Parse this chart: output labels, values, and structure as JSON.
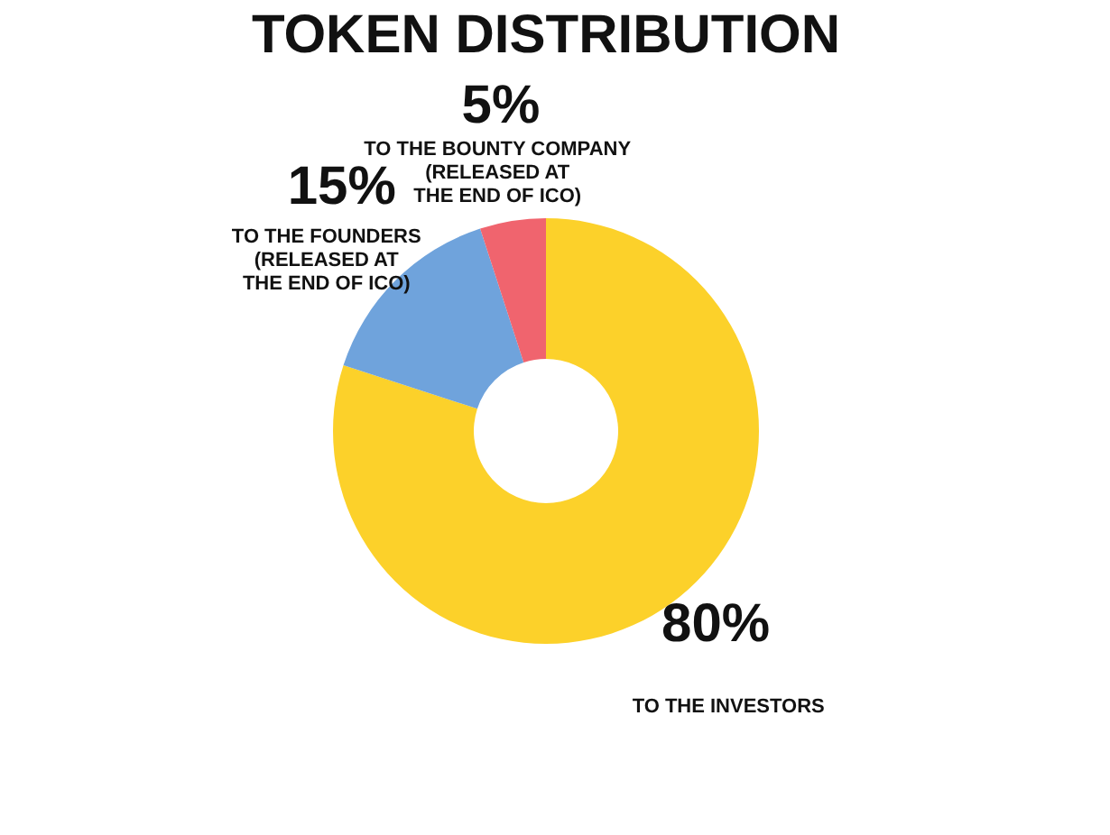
{
  "chart_data": {
    "type": "donut",
    "title": "TOKEN DISTRIBUTION",
    "categories": [
      "TO THE INVESTORS",
      "TO THE FOUNDERS\n(RELEASED AT\nTHE END OF ICO)",
      "TO THE BOUNTY COMPANY\n(RELEASED AT\nTHE END OF ICO)"
    ],
    "values": [
      80,
      15,
      5
    ],
    "colors": [
      "#fcd12a",
      "#6fa3dc",
      "#f0646e"
    ],
    "value_labels": [
      "80%",
      "15%",
      "5%"
    ],
    "legend": false
  }
}
